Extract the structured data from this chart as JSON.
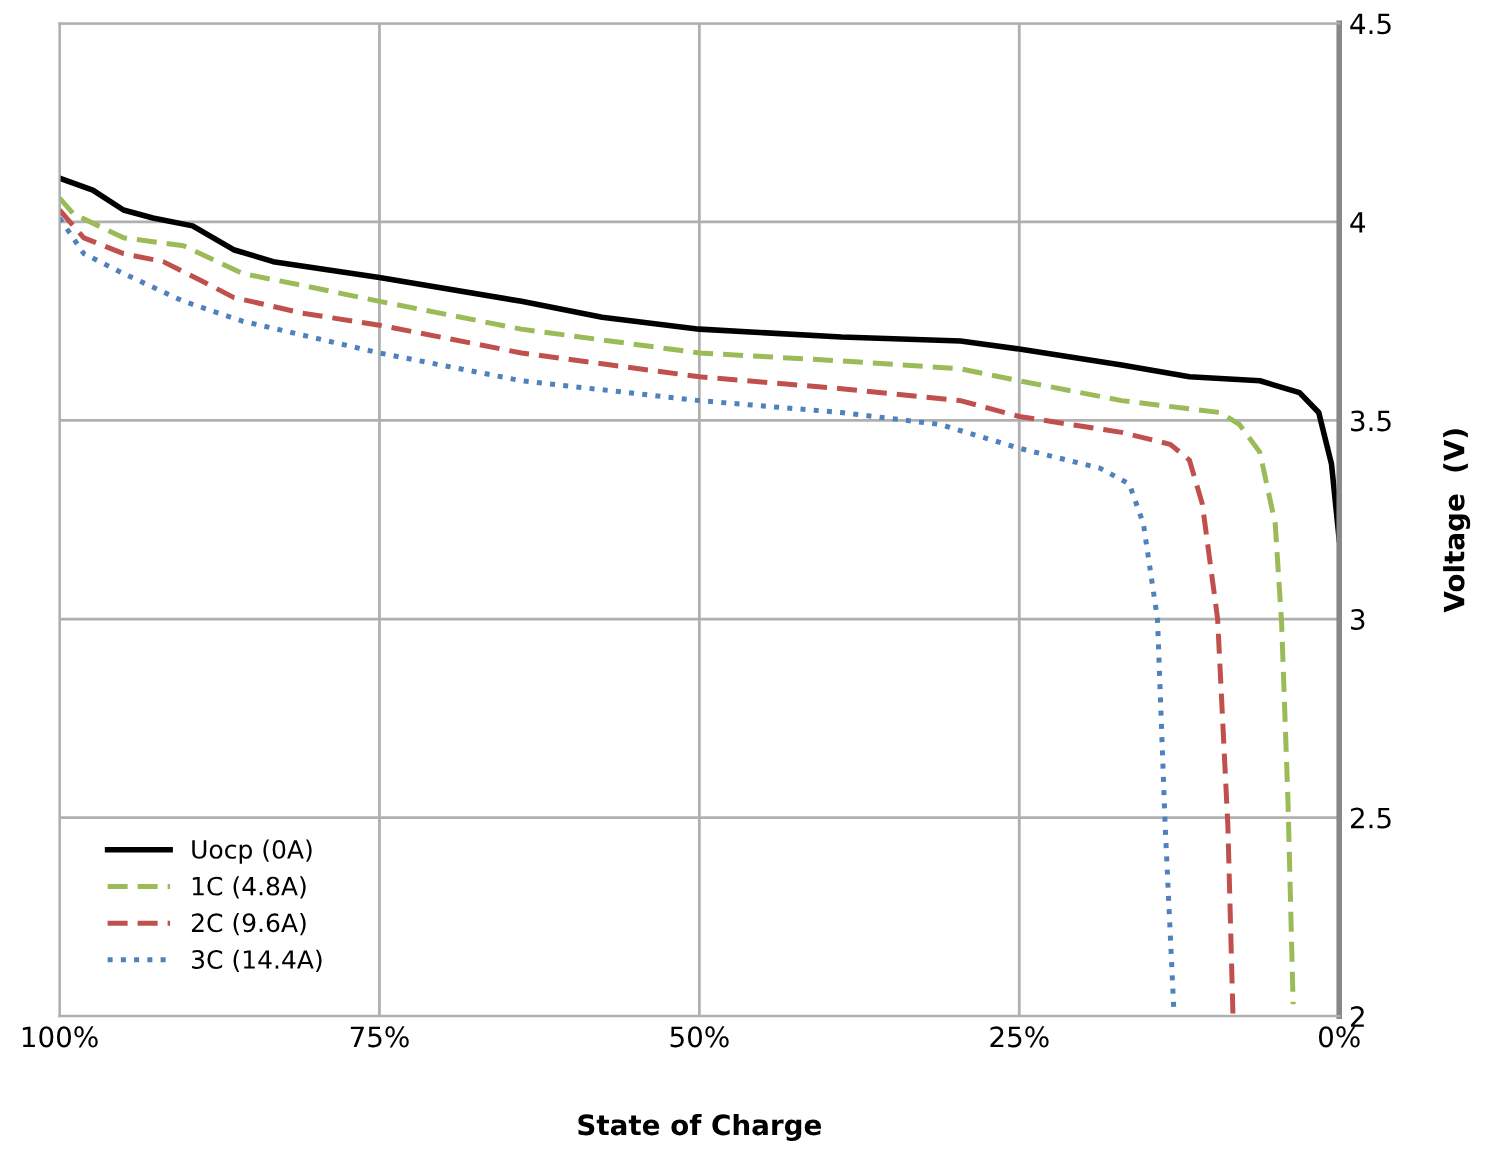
{
  "chart_data": {
    "type": "line",
    "xlabel": "State of Charge",
    "ylabel": "Voltage  (V)",
    "xlim": [
      100,
      0
    ],
    "ylim": [
      2,
      4.5
    ],
    "xticks": [
      {
        "value": 100,
        "label": "100%"
      },
      {
        "value": 75,
        "label": "75%"
      },
      {
        "value": 50,
        "label": "50%"
      },
      {
        "value": 25,
        "label": "25%"
      },
      {
        "value": 0,
        "label": "0%"
      }
    ],
    "yticks": [
      2,
      2.5,
      3,
      3.5,
      4,
      4.5
    ],
    "grid": true,
    "legend": "bottom left",
    "marker": "none",
    "series": [
      {
        "name": "Uocp (0A)",
        "color": "#000000",
        "line_style": "solid",
        "x": [
          100,
          97.4,
          95,
          92.7,
          89.6,
          86.4,
          83.3,
          75,
          63.9,
          57.6,
          50,
          38.9,
          29.6,
          25,
          17,
          11.7,
          6.2,
          3.1,
          1.6,
          0.6,
          0
        ],
        "values": [
          4.11,
          4.08,
          4.03,
          4.01,
          3.99,
          3.93,
          3.9,
          3.86,
          3.8,
          3.76,
          3.73,
          3.71,
          3.7,
          3.68,
          3.64,
          3.61,
          3.6,
          3.57,
          3.52,
          3.39,
          3.2
        ]
      },
      {
        "name": "1C (4.8A)",
        "color": "#9bbb59",
        "line_style": "dashed",
        "x": [
          100,
          98.9,
          95,
          90.3,
          85.7,
          81,
          75,
          63.9,
          50,
          38.9,
          29.6,
          25,
          17,
          9.3,
          7.8,
          6.2,
          5.0,
          4.5,
          4.0,
          3.6
        ],
        "values": [
          4.06,
          4.02,
          3.96,
          3.94,
          3.87,
          3.84,
          3.8,
          3.73,
          3.67,
          3.65,
          3.63,
          3.6,
          3.55,
          3.52,
          3.49,
          3.42,
          3.24,
          2.99,
          2.54,
          2.03
        ]
      },
      {
        "name": "2C (9.6A)",
        "color": "#c0504d",
        "line_style": "dashed",
        "x": [
          100,
          98.1,
          95,
          91.9,
          88.8,
          86.4,
          81,
          75,
          63.9,
          50,
          38.9,
          29.6,
          25,
          17,
          13.2,
          11.7,
          10.7,
          9.5,
          8.7,
          8.3
        ],
        "values": [
          4.03,
          3.96,
          3.92,
          3.9,
          3.85,
          3.81,
          3.77,
          3.74,
          3.67,
          3.61,
          3.58,
          3.55,
          3.51,
          3.47,
          3.44,
          3.4,
          3.29,
          3.0,
          2.48,
          2.0
        ]
      },
      {
        "name": "3C (14.4A)",
        "color": "#4f81bd",
        "line_style": "dotted",
        "x": [
          100,
          98.1,
          95,
          90.3,
          85.7,
          75,
          63.9,
          50,
          38.9,
          31.2,
          25,
          18.7,
          16.4,
          15.3,
          14.2,
          13.6,
          12.9
        ],
        "values": [
          4.01,
          3.92,
          3.87,
          3.8,
          3.75,
          3.67,
          3.6,
          3.55,
          3.52,
          3.49,
          3.43,
          3.38,
          3.34,
          3.24,
          3.0,
          2.48,
          2.0
        ]
      }
    ]
  }
}
